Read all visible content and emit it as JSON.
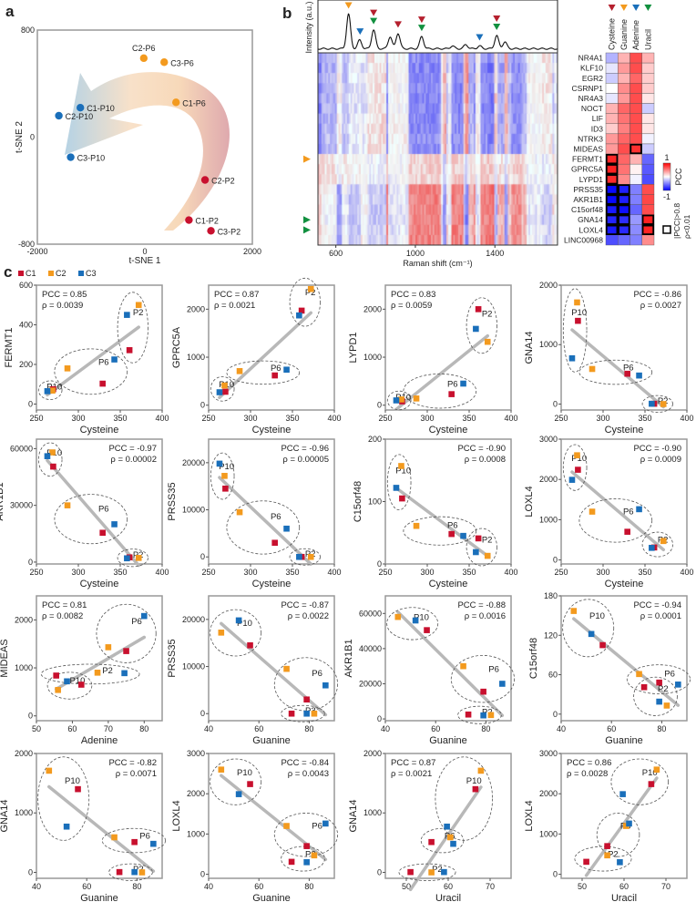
{
  "panel_labels": {
    "a": "a",
    "b": "b",
    "c": "c"
  },
  "colors": {
    "C1": "#c8102e",
    "C2": "#f39a1e",
    "C3": "#1a6fba",
    "Cysteine": "#b5202e",
    "Guanine": "#f39a1e",
    "Adenine": "#1a6fba",
    "Uracil": "#12903f"
  },
  "chart_data": [
    {
      "id": "a",
      "type": "scatter",
      "xlabel": "t-SNE 1",
      "ylabel": "t-SNE 2",
      "xlim": [
        -2000,
        2000
      ],
      "ylim": [
        -800,
        800
      ],
      "xticks": [
        "-2000",
        "0",
        "2000"
      ],
      "yticks": [
        "-800",
        "0",
        "800"
      ],
      "points": [
        {
          "label": "C2-P6",
          "series": "C2",
          "x": -20,
          "y": 590
        },
        {
          "label": "C3-P6",
          "series": "C2",
          "x": 360,
          "y": 560
        },
        {
          "label": "C1-P6",
          "series": "C2",
          "x": 580,
          "y": 260
        },
        {
          "label": "C1-P10",
          "series": "C3",
          "x": -1200,
          "y": 220
        },
        {
          "label": "C2-P10",
          "series": "C3",
          "x": -1600,
          "y": 160
        },
        {
          "label": "C3-P10",
          "series": "C3",
          "x": -1380,
          "y": -150
        },
        {
          "label": "C2-P2",
          "series": "C1",
          "x": 1120,
          "y": -320
        },
        {
          "label": "C1-P2",
          "series": "C1",
          "x": 820,
          "y": -620
        },
        {
          "label": "C3-P2",
          "series": "C1",
          "x": 1230,
          "y": -700
        }
      ]
    },
    {
      "id": "b",
      "type": "heatmap",
      "spectrum_ylabel": "Intensity (a.u.)",
      "xlabel": "Raman shift (cm⁻¹)",
      "xlim": [
        510,
        1715
      ],
      "xticks": [
        600,
        1000,
        1400
      ],
      "peaks": [
        [
          664,
          1.0
        ],
        [
          720,
          0.25
        ],
        [
          790,
          0.55
        ],
        [
          873,
          0.35
        ],
        [
          913,
          0.45
        ],
        [
          1032,
          0.35
        ],
        [
          1186,
          0.08
        ],
        [
          1254,
          0.12
        ],
        [
          1323,
          0.08
        ],
        [
          1409,
          0.38
        ],
        [
          1450,
          0.2
        ]
      ],
      "peak_markers": [
        {
          "shift": 664,
          "nucleotides": [
            "Cysteine",
            "Guanine"
          ]
        },
        {
          "shift": 722,
          "nucleotides": [
            "Adenine"
          ]
        },
        {
          "shift": 790,
          "nucleotides": [
            "Cysteine",
            "Uracil"
          ]
        },
        {
          "shift": 913,
          "nucleotides": [
            "Cysteine"
          ]
        },
        {
          "shift": 1032,
          "nucleotides": [
            "Cysteine",
            "Uracil"
          ]
        },
        {
          "shift": 1323,
          "nucleotides": [
            "Adenine"
          ]
        },
        {
          "shift": 1409,
          "nucleotides": [
            "Cysteine",
            "Uracil"
          ]
        }
      ],
      "row_markers": [
        {
          "gene": "FERMT1",
          "color": "Guanine"
        },
        {
          "gene": "GNA14",
          "color": "Uracil"
        },
        {
          "gene": "LOXL4",
          "color": "Uracil"
        }
      ],
      "columns": [
        "Cysteine",
        "Guanine",
        "Adenine",
        "Uracil"
      ],
      "genes": [
        "NR4A1",
        "KLF10",
        "EGR2",
        "CSRNP1",
        "NR4A3",
        "NOCT",
        "LIF",
        "ID3",
        "NTRK3",
        "MIDEAS",
        "FERMT1",
        "GPRC5A",
        "LYPD1",
        "PRSS35",
        "AKR1B1",
        "C15orf48",
        "GNA14",
        "LOXL4",
        "LINC00968"
      ],
      "pcc": [
        [
          -0.3,
          0.3,
          0.7,
          0.3
        ],
        [
          -0.1,
          0.4,
          0.7,
          0.2
        ],
        [
          -0.2,
          0.3,
          0.6,
          0.2
        ],
        [
          0.0,
          0.45,
          0.7,
          0.2
        ],
        [
          -0.1,
          0.4,
          0.7,
          0.1
        ],
        [
          0.3,
          0.6,
          0.7,
          -0.2
        ],
        [
          0.3,
          0.55,
          0.7,
          0.1
        ],
        [
          0.2,
          0.5,
          0.7,
          0.1
        ],
        [
          0.4,
          0.6,
          0.7,
          -0.05
        ],
        [
          0.4,
          0.7,
          0.81,
          -0.2
        ],
        [
          0.85,
          0.6,
          0.3,
          -0.6
        ],
        [
          0.87,
          0.55,
          0.05,
          -0.65
        ],
        [
          0.83,
          0.45,
          -0.05,
          -0.7
        ],
        [
          -0.96,
          -0.87,
          -0.5,
          0.7
        ],
        [
          -0.97,
          -0.88,
          -0.5,
          0.72
        ],
        [
          -0.9,
          -0.94,
          -0.6,
          0.7
        ],
        [
          -0.86,
          -0.82,
          -0.4,
          0.87
        ],
        [
          -0.9,
          -0.84,
          -0.45,
          0.86
        ],
        [
          -0.7,
          -0.6,
          -0.5,
          0.45
        ]
      ],
      "colorbar": {
        "label": "PCC",
        "max": "1",
        "min": "-1"
      },
      "legend": {
        "line1": "|PCC|>0.8",
        "line2": "ρ<0.01"
      }
    },
    {
      "id": "c",
      "type": "scatter",
      "legend": [
        "C1",
        "C2",
        "C3"
      ],
      "samples": [
        {
          "id": "C1-P2",
          "series": "C1",
          "group": "P2",
          "Cysteine": 361,
          "Adenine": 55.5,
          "Guanine": 73,
          "Uracil": 51,
          "FERMT1": 272,
          "GPRC5A": 1970,
          "LYPD1": 2000,
          "GNA14": 5,
          "AKR1B1": 2500,
          "PRSS35": 0,
          "C15orf48": 41,
          "LOXL4": 310,
          "MIDEAS": 840
        },
        {
          "id": "C2-P2",
          "series": "C2",
          "group": "P2",
          "Cysteine": 372,
          "Adenine": 67,
          "Guanine": 82,
          "Uracil": 56,
          "FERMT1": 500,
          "GPRC5A": 2420,
          "LYPD1": 1320,
          "GNA14": 0,
          "AKR1B1": 2200,
          "PRSS35": 0,
          "C15orf48": 13,
          "LOXL4": 470,
          "MIDEAS": 900
        },
        {
          "id": "C3-P2",
          "series": "C3",
          "group": "P2",
          "Cysteine": 358,
          "Adenine": 74.5,
          "Guanine": 79,
          "Uracil": 59,
          "FERMT1": 450,
          "GPRC5A": 1870,
          "LYPD1": 1590,
          "GNA14": 5,
          "AKR1B1": 2000,
          "PRSS35": 0,
          "C15orf48": 19,
          "LOXL4": 300,
          "MIDEAS": 890
        },
        {
          "id": "C1-P6",
          "series": "C1",
          "group": "P6",
          "Cysteine": 329,
          "Adenine": 75,
          "Guanine": 79,
          "Uracil": 56,
          "FERMT1": 103,
          "GPRC5A": 620,
          "LYPD1": 230,
          "GNA14": 510,
          "AKR1B1": 15500,
          "PRSS35": 3000,
          "C15orf48": 48,
          "LOXL4": 700,
          "MIDEAS": 1350
        },
        {
          "id": "C2-P6",
          "series": "C2",
          "group": "P6",
          "Cysteine": 287,
          "Adenine": 70,
          "Guanine": 71,
          "Uracil": 60.5,
          "FERMT1": 180,
          "GPRC5A": 710,
          "LYPD1": 140,
          "GNA14": 590,
          "AKR1B1": 30000,
          "PRSS35": 9500,
          "C15orf48": 61,
          "LOXL4": 1200,
          "MIDEAS": 1430
        },
        {
          "id": "C3-P6",
          "series": "C3",
          "group": "P6",
          "Cysteine": 343,
          "Adenine": 80,
          "Guanine": 86.5,
          "Uracil": 61.2,
          "FERMT1": 225,
          "GPRC5A": 740,
          "LYPD1": 450,
          "GNA14": 480,
          "AKR1B1": 20000,
          "PRSS35": 6000,
          "C15orf48": 45,
          "LOXL4": 1260,
          "MIDEAS": 2080
        },
        {
          "id": "C1-P10",
          "series": "C1",
          "group": "P10",
          "Cysteine": 270,
          "Adenine": 62.5,
          "Guanine": 56.5,
          "Uracil": 66.5,
          "FERMT1": 75,
          "GPRC5A": 280,
          "LYPD1": 80,
          "GNA14": 1400,
          "AKR1B1": 50500,
          "PRSS35": 14500,
          "C15orf48": 105,
          "LOXL4": 2240,
          "MIDEAS": 650
        },
        {
          "id": "C2-P10",
          "series": "C2",
          "group": "P10",
          "Cysteine": 269,
          "Adenine": 56,
          "Guanine": 45,
          "Uracil": 67.8,
          "FERMT1": 68,
          "GPRC5A": 410,
          "LYPD1": 120,
          "GNA14": 1710,
          "AKR1B1": 58000,
          "PRSS35": 17200,
          "C15orf48": 157,
          "LOXL4": 2600,
          "MIDEAS": 540
        },
        {
          "id": "C3-P10",
          "series": "C3",
          "group": "P10",
          "Cysteine": 263,
          "Adenine": 58.5,
          "Guanine": 52,
          "Uracil": 59.7,
          "FERMT1": 65,
          "GPRC5A": 270,
          "LYPD1": 100,
          "GNA14": 770,
          "AKR1B1": 56000,
          "PRSS35": 19800,
          "C15orf48": 122,
          "LOXL4": 1990,
          "MIDEAS": 720
        }
      ],
      "plots": [
        {
          "y": "FERMT1",
          "x": "Cysteine",
          "pcc": "PCC = 0.85",
          "p": "ρ = 0.0039",
          "xlim": [
            250,
            400
          ],
          "xticks": [
            250,
            300,
            350,
            400
          ],
          "ylim": [
            -30,
            600
          ],
          "yticks": [
            0,
            200,
            400,
            600
          ]
        },
        {
          "y": "GPRC5A",
          "x": "Cysteine",
          "pcc": "PCC = 0.87",
          "p": "ρ = 0.0021",
          "xlim": [
            250,
            400
          ],
          "xticks": [
            250,
            300,
            350,
            400
          ],
          "ylim": [
            -100,
            2500
          ],
          "yticks": [
            0,
            1000,
            2000
          ]
        },
        {
          "y": "LYPD1",
          "x": "Cysteine",
          "pcc": "PCC = 0.83",
          "p": "ρ = 0.0059",
          "xlim": [
            250,
            400
          ],
          "xticks": [
            250,
            300,
            350,
            400
          ],
          "ylim": [
            -100,
            2500
          ],
          "yticks": [
            0,
            1000,
            2000
          ]
        },
        {
          "y": "GNA14",
          "x": "Cysteine",
          "pcc": "PCC = -0.86",
          "p": "ρ = 0.0027",
          "xlim": [
            250,
            400
          ],
          "xticks": [
            250,
            300,
            350,
            400
          ],
          "ylim": [
            -100,
            2000
          ],
          "yticks": [
            0,
            1000,
            2000
          ]
        },
        {
          "y": "AKR1B1",
          "x": "Cysteine",
          "pcc": "PCC = -0.97",
          "p": "ρ = 0.00002",
          "xlim": [
            250,
            400
          ],
          "xticks": [
            250,
            300,
            350,
            400
          ],
          "ylim": [
            -1000,
            65000
          ],
          "yticks": [
            0,
            30000,
            60000
          ]
        },
        {
          "y": "PRSS35",
          "x": "Cysteine",
          "pcc": "PCC = -0.96",
          "p": "ρ = 0.00005",
          "xlim": [
            250,
            400
          ],
          "xticks": [
            250,
            300,
            350,
            400
          ],
          "ylim": [
            -1500,
            25000
          ],
          "yticks": [
            0,
            10000,
            20000
          ]
        },
        {
          "y": "C15orf48",
          "x": "Cysteine",
          "pcc": "PCC = -0.90",
          "p": "ρ = 0.0008",
          "xlim": [
            250,
            400
          ],
          "xticks": [
            250,
            300,
            350,
            400
          ],
          "ylim": [
            0,
            200
          ],
          "yticks": [
            0,
            100,
            200
          ]
        },
        {
          "y": "LOXL4",
          "x": "Cysteine",
          "pcc": "PCC = -0.90",
          "p": "ρ = 0.0009",
          "xlim": [
            250,
            400
          ],
          "xticks": [
            250,
            300,
            350,
            400
          ],
          "ylim": [
            -100,
            3000
          ],
          "yticks": [
            0,
            1000,
            2000,
            3000
          ]
        },
        {
          "y": "MIDEAS",
          "x": "Adenine",
          "pcc": "PCC = 0.81",
          "p": "ρ = 0.0082",
          "xlim": [
            50,
            85
          ],
          "xticks": [
            50,
            60,
            70,
            80
          ],
          "ylim": [
            -100,
            2500
          ],
          "yticks": [
            0,
            1000,
            2000
          ]
        },
        {
          "y": "PRSS35",
          "x": "Guanine",
          "pcc": "PCC = -0.87",
          "p": "ρ = 0.0022",
          "xlim": [
            40,
            90
          ],
          "xticks": [
            40,
            60,
            80
          ],
          "ylim": [
            -1500,
            25000
          ],
          "yticks": [
            0,
            10000,
            20000
          ]
        },
        {
          "y": "AKR1B1",
          "x": "Guanine",
          "pcc": "PCC = -0.88",
          "p": "ρ = 0.0016",
          "xlim": [
            40,
            90
          ],
          "xticks": [
            40,
            60,
            80
          ],
          "ylim": [
            -1000,
            70000
          ],
          "yticks": [
            0,
            20000,
            40000,
            60000
          ]
        },
        {
          "y": "C15orf48",
          "x": "Guanine",
          "pcc": "PCC = -0.94",
          "p": "ρ = 0.0001",
          "xlim": [
            40,
            90
          ],
          "xticks": [
            40,
            60,
            80
          ],
          "ylim": [
            -10,
            180
          ],
          "yticks": [
            0,
            60,
            120,
            180
          ]
        },
        {
          "y": "GNA14",
          "x": "Guanine",
          "pcc": "PCC = -0.82",
          "p": "ρ = 0.0071",
          "xlim": [
            40,
            90
          ],
          "xticks": [
            40,
            60,
            80
          ],
          "ylim": [
            -100,
            2000
          ],
          "yticks": [
            0,
            1000,
            2000
          ]
        },
        {
          "y": "LOXL4",
          "x": "Guanine",
          "pcc": "PCC = -0.84",
          "p": "ρ = 0.0043",
          "xlim": [
            40,
            90
          ],
          "xticks": [
            40,
            60,
            80
          ],
          "ylim": [
            -100,
            3000
          ],
          "yticks": [
            0,
            1000,
            2000,
            3000
          ]
        },
        {
          "y": "GNA14",
          "x": "Uracil",
          "pcc": "PCC = 0.87",
          "p": "ρ = 0.0021",
          "xlim": [
            45,
            75
          ],
          "xticks": [
            50,
            60,
            70
          ],
          "ylim": [
            -100,
            2000
          ],
          "yticks": [
            0,
            1000,
            2000
          ]
        },
        {
          "y": "LOXL4",
          "x": "Uracil",
          "pcc": "PCC = 0.86",
          "p": "ρ = 0.0028",
          "xlim": [
            45,
            75
          ],
          "xticks": [
            50,
            60,
            70
          ],
          "ylim": [
            -100,
            3000
          ],
          "yticks": [
            0,
            1000,
            2000,
            3000
          ]
        }
      ]
    }
  ]
}
